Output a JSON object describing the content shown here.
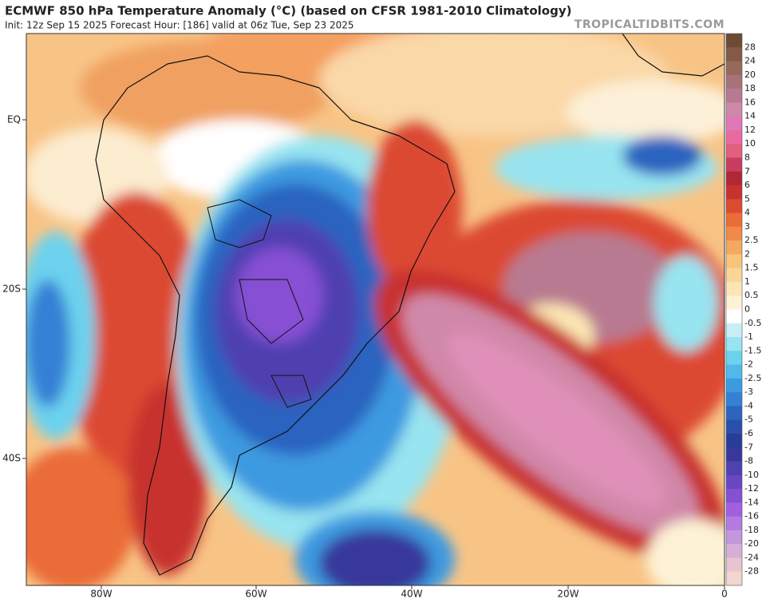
{
  "header": {
    "title": "ECMWF 850 hPa Temperature Anomaly (°C) (based on CFSR 1981-2010 Climatology)",
    "subtitle": "Init: 12z Sep 15 2025   Forecast Hour: [186]   valid at 06z Tue, Sep 23 2025",
    "watermark": "TROPICALTIDBITS.COM"
  },
  "map": {
    "latitude_labels": [
      "EQ",
      "20S",
      "40S"
    ],
    "longitude_labels": [
      "80W",
      "60W",
      "40W",
      "20W",
      "0"
    ]
  },
  "colorbar": {
    "labels": [
      "28",
      "24",
      "20",
      "18",
      "16",
      "14",
      "12",
      "10",
      "8",
      "7",
      "6",
      "5",
      "4",
      "3",
      "2.5",
      "2",
      "1.5",
      "1",
      "0.5",
      "0",
      "-0.5",
      "-1",
      "-1.5",
      "-2",
      "-2.5",
      "-3",
      "-4",
      "-5",
      "-6",
      "-7",
      "-8",
      "-10",
      "-12",
      "-14",
      "-16",
      "-18",
      "-20",
      "-24",
      "-28"
    ],
    "colors": [
      "#6e4a32",
      "#835a45",
      "#98685a",
      "#a8727a",
      "#b87a90",
      "#d088a8",
      "#e078b8",
      "#ea6aa0",
      "#e0607e",
      "#c83c5e",
      "#b02838",
      "#c8322e",
      "#dc4a30",
      "#ea6c38",
      "#f08a48",
      "#f4a860",
      "#f8c47a",
      "#fad696",
      "#fce6b4",
      "#fdf2d6",
      "#ffffff",
      "#c8f0f4",
      "#98e4f0",
      "#6cd2ee",
      "#50b8ea",
      "#3c9ae0",
      "#3480d4",
      "#2c64c0",
      "#2850a8",
      "#283c98",
      "#38389c",
      "#5040b0",
      "#6a46c4",
      "#8650d4",
      "#a060e0",
      "#b47ae0",
      "#c496dc",
      "#d8aed8",
      "#e8c4d0",
      "#f4d6d0"
    ]
  }
}
